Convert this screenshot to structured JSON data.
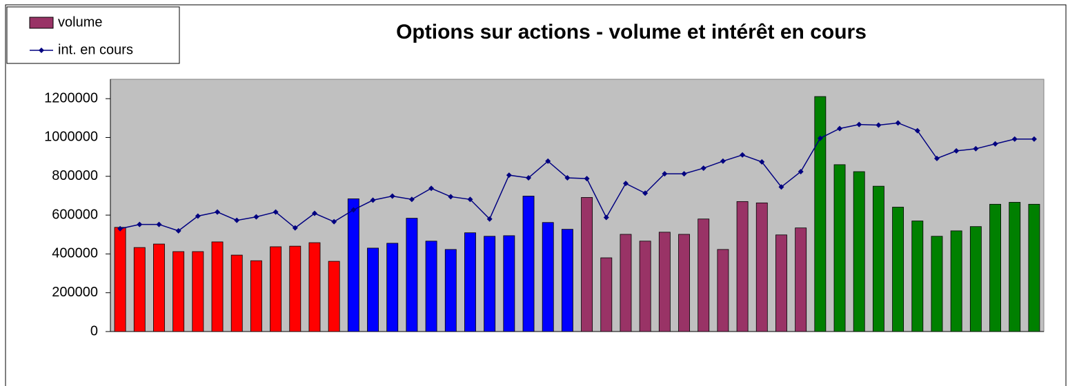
{
  "chart_data": {
    "type": "bar_line",
    "title": "Options sur actions  - volume et intérêt en cours",
    "categories": [
      null,
      null,
      null,
      null,
      null,
      null,
      null,
      null,
      null,
      null,
      null,
      null,
      null,
      null,
      null,
      null,
      null,
      null,
      null,
      null,
      null,
      null,
      null,
      null,
      null,
      null,
      null,
      null,
      null,
      null,
      null,
      null,
      null,
      null,
      null,
      null,
      null,
      null,
      null,
      null,
      null,
      null,
      null,
      null,
      null,
      null,
      null,
      null
    ],
    "series": [
      {
        "name": "volume",
        "type": "bar",
        "color": "#993366",
        "colors": [
          "#ff0000",
          "#ff0000",
          "#ff0000",
          "#ff0000",
          "#ff0000",
          "#ff0000",
          "#ff0000",
          "#ff0000",
          "#ff0000",
          "#ff0000",
          "#ff0000",
          "#ff0000",
          "#0000ff",
          "#0000ff",
          "#0000ff",
          "#0000ff",
          "#0000ff",
          "#0000ff",
          "#0000ff",
          "#0000ff",
          "#0000ff",
          "#0000ff",
          "#0000ff",
          "#0000ff",
          "#993366",
          "#993366",
          "#993366",
          "#993366",
          "#993366",
          "#993366",
          "#993366",
          "#993366",
          "#993366",
          "#993366",
          "#993366",
          "#993366",
          "#008000",
          "#008000",
          "#008000",
          "#008000",
          "#008000",
          "#008000",
          "#008000",
          "#008000",
          "#008000",
          "#008000",
          "#008000",
          "#008000"
        ],
        "values": [
          537000,
          433000,
          451000,
          412000,
          412000,
          462000,
          394000,
          365000,
          437000,
          440000,
          458000,
          362000,
          684000,
          430000,
          455000,
          584000,
          466000,
          423000,
          509000,
          491000,
          494000,
          698000,
          562000,
          527000,
          691000,
          380000,
          501000,
          466000,
          512000,
          501000,
          580000,
          423000,
          670000,
          663000,
          498000,
          534000,
          1211000,
          860000,
          824000,
          749000,
          641000,
          570000,
          491000,
          519000,
          541000,
          656000,
          666000,
          656000
        ]
      },
      {
        "name": "int. en cours",
        "type": "line",
        "color": "#000080",
        "values": [
          530000,
          552000,
          552000,
          519000,
          595000,
          616000,
          573000,
          591000,
          616000,
          534000,
          609000,
          566000,
          627000,
          677000,
          698000,
          681000,
          738000,
          695000,
          681000,
          580000,
          806000,
          792000,
          878000,
          792000,
          788000,
          588000,
          763000,
          713000,
          813000,
          813000,
          842000,
          878000,
          910000,
          874000,
          745000,
          824000,
          996000,
          1046000,
          1067000,
          1064000,
          1075000,
          1035000,
          892000,
          931000,
          942000,
          967000,
          992000,
          992000
        ]
      }
    ],
    "ylim": [
      0,
      1300000
    ],
    "yticks": [
      0,
      200000,
      400000,
      600000,
      800000,
      1000000,
      1200000
    ],
    "legend": "top-left",
    "plot_background": "#c0c0c0"
  }
}
